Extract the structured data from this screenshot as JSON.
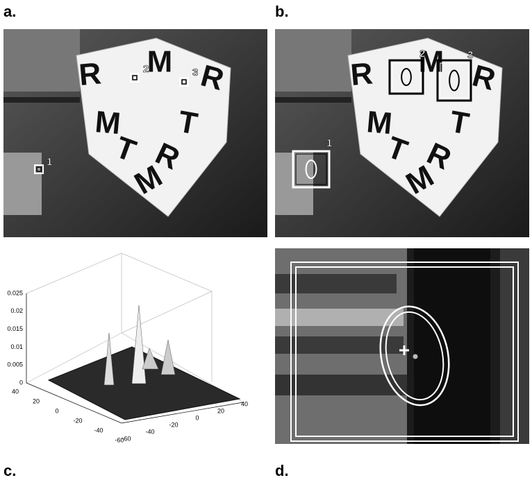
{
  "panels": [
    {
      "label": "a.",
      "letters": [
        "R",
        "M",
        "R",
        "M",
        "T",
        "R",
        "T",
        "M"
      ],
      "markers": [
        "1",
        "2",
        "3"
      ]
    },
    {
      "label": "b.",
      "letters": [
        "R",
        "M",
        "R",
        "M",
        "T",
        "R",
        "T",
        "M"
      ],
      "markers": [
        "1",
        "2",
        "3"
      ]
    },
    {
      "label": "c.",
      "zticks": [
        0,
        0.005,
        0.01,
        0.015,
        0.02,
        0.025
      ],
      "xticks": [
        40,
        20,
        0,
        -20,
        -40,
        -60
      ],
      "yticks": [
        -60,
        -40,
        -20,
        0,
        20,
        40
      ]
    },
    {
      "label": "d."
    }
  ]
}
